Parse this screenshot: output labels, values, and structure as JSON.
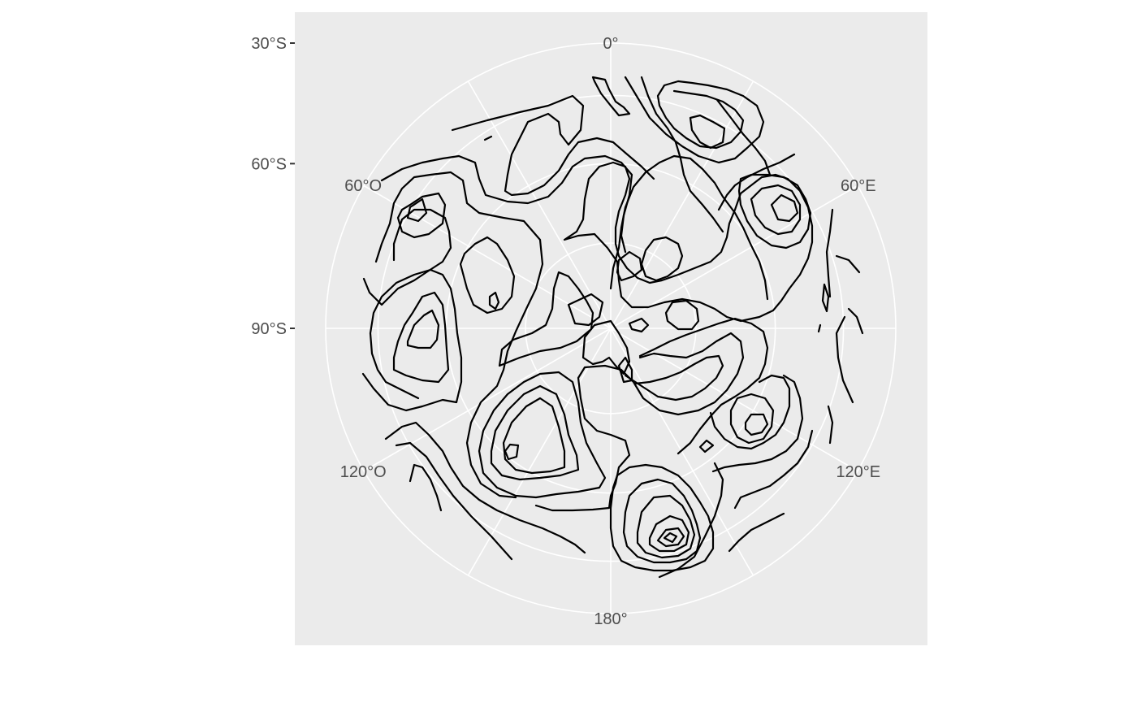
{
  "chart_data": {
    "type": "contour",
    "projection": "south polar stereographic (orthographic disc)",
    "panel_color": "#ebebeb",
    "grid_color": "#ffffff",
    "line_color": "#000000",
    "longitude_labels": [
      {
        "lon": 0,
        "label": "0°"
      },
      {
        "lon": 60,
        "label": "60°E"
      },
      {
        "lon": 120,
        "label": "120°E"
      },
      {
        "lon": 180,
        "label": "180°"
      },
      {
        "lon": -120,
        "label": "120°O"
      },
      {
        "lon": -60,
        "label": "60°O"
      }
    ],
    "latitude_labels": [
      {
        "lat": -30,
        "label": "30°S"
      },
      {
        "lat": -60,
        "label": "60°S"
      },
      {
        "lat": -90,
        "label": "90°S"
      }
    ],
    "graticule_longitudes": [
      0,
      30,
      60,
      90,
      120,
      150,
      180,
      -150,
      -120,
      -90,
      -60,
      -30
    ],
    "graticule_latitudes": [
      -30,
      -45,
      -60,
      -75
    ],
    "contours": "black iso-lines of a smooth random field covering the disc south of about 15°S"
  }
}
